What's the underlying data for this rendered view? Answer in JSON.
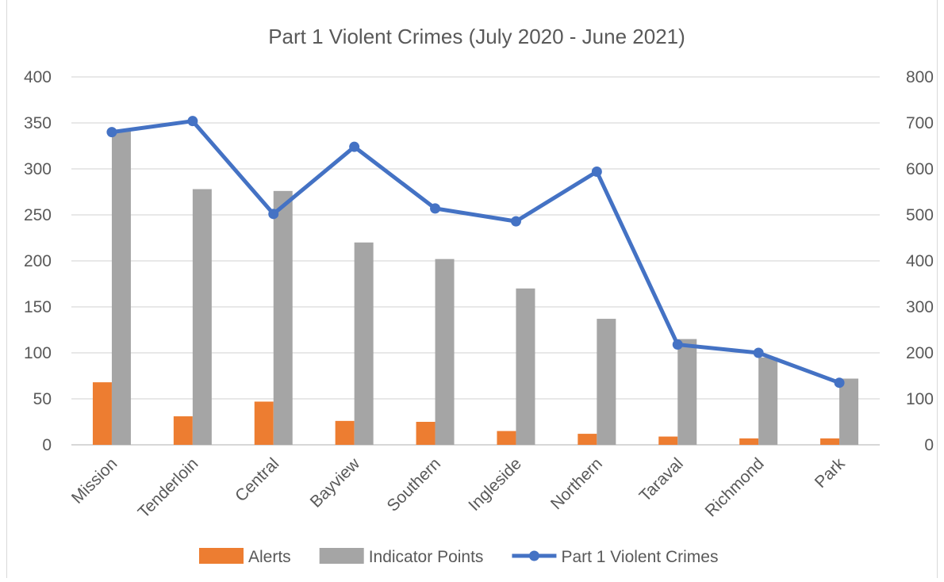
{
  "chart_data": {
    "type": "bar",
    "title": "Part 1 Violent Crimes (July 2020 - June 2021)",
    "categories": [
      "Mission",
      "Tenderloin",
      "Central",
      "Bayview",
      "Southern",
      "Ingleside",
      "Northern",
      "Taraval",
      "Richmond",
      "Park"
    ],
    "series": [
      {
        "name": "Alerts",
        "type": "bar",
        "axis": "left",
        "color": "#ED7D31",
        "values": [
          68,
          31,
          47,
          26,
          25,
          15,
          12,
          9,
          7,
          7
        ]
      },
      {
        "name": "Indicator Points",
        "type": "bar",
        "axis": "left",
        "color": "#A5A5A5",
        "values": [
          341,
          278,
          276,
          220,
          202,
          170,
          137,
          115,
          95,
          72
        ]
      },
      {
        "name": "Part 1 Violent Crimes",
        "type": "line",
        "axis": "right",
        "color": "#4472C4",
        "values": [
          680,
          704,
          502,
          648,
          514,
          486,
          594,
          218,
          200,
          135
        ]
      }
    ],
    "left_axis": {
      "ylim": [
        0,
        400
      ],
      "ticks": [
        "0",
        "50",
        "100",
        "150",
        "200",
        "250",
        "300",
        "350",
        "400"
      ]
    },
    "right_axis": {
      "ylim": [
        0,
        800
      ],
      "ticks": [
        "0",
        "100",
        "200",
        "300",
        "400",
        "500",
        "600",
        "700",
        "800"
      ]
    },
    "grid": true,
    "legend_position": "bottom",
    "gridline_color": "#D9D9D9",
    "text_color": "#595959"
  }
}
